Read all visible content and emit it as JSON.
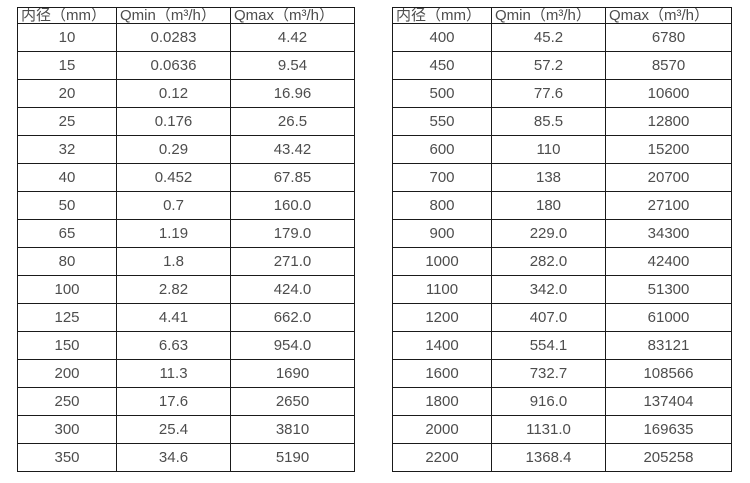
{
  "colors": {
    "background": "#ffffff",
    "border": "#1a1a1a",
    "text": "#4d4d4d"
  },
  "tables": [
    {
      "name": "flow-range-small-diameters",
      "headers": [
        "内径（mm）",
        "Qmin（m³/h）",
        "Qmax（m³/h）"
      ],
      "rows": [
        [
          "10",
          "0.0283",
          "4.42"
        ],
        [
          "15",
          "0.0636",
          "9.54"
        ],
        [
          "20",
          "0.12",
          "16.96"
        ],
        [
          "25",
          "0.176",
          "26.5"
        ],
        [
          "32",
          "0.29",
          "43.42"
        ],
        [
          "40",
          "0.452",
          "67.85"
        ],
        [
          "50",
          "0.7",
          "160.0"
        ],
        [
          "65",
          "1.19",
          "179.0"
        ],
        [
          "80",
          "1.8",
          "271.0"
        ],
        [
          "100",
          "2.82",
          "424.0"
        ],
        [
          "125",
          "4.41",
          "662.0"
        ],
        [
          "150",
          "6.63",
          "954.0"
        ],
        [
          "200",
          "11.3",
          "1690"
        ],
        [
          "250",
          "17.6",
          "2650"
        ],
        [
          "300",
          "25.4",
          "3810"
        ],
        [
          "350",
          "34.6",
          "5190"
        ]
      ]
    },
    {
      "name": "flow-range-large-diameters",
      "headers": [
        "内径（mm）",
        "Qmin（m³/h）",
        "Qmax（m³/h）"
      ],
      "rows": [
        [
          "400",
          "45.2",
          "6780"
        ],
        [
          "450",
          "57.2",
          "8570"
        ],
        [
          "500",
          "77.6",
          "10600"
        ],
        [
          "550",
          "85.5",
          "12800"
        ],
        [
          "600",
          "110",
          "15200"
        ],
        [
          "700",
          "138",
          "20700"
        ],
        [
          "800",
          "180",
          "27100"
        ],
        [
          "900",
          "229.0",
          "34300"
        ],
        [
          "1000",
          "282.0",
          "42400"
        ],
        [
          "1100",
          "342.0",
          "51300"
        ],
        [
          "1200",
          "407.0",
          "61000"
        ],
        [
          "1400",
          "554.1",
          "83121"
        ],
        [
          "1600",
          "732.7",
          "108566"
        ],
        [
          "1800",
          "916.0",
          "137404"
        ],
        [
          "2000",
          "1131.0",
          "169635"
        ],
        [
          "2200",
          "1368.4",
          "205258"
        ]
      ]
    }
  ]
}
